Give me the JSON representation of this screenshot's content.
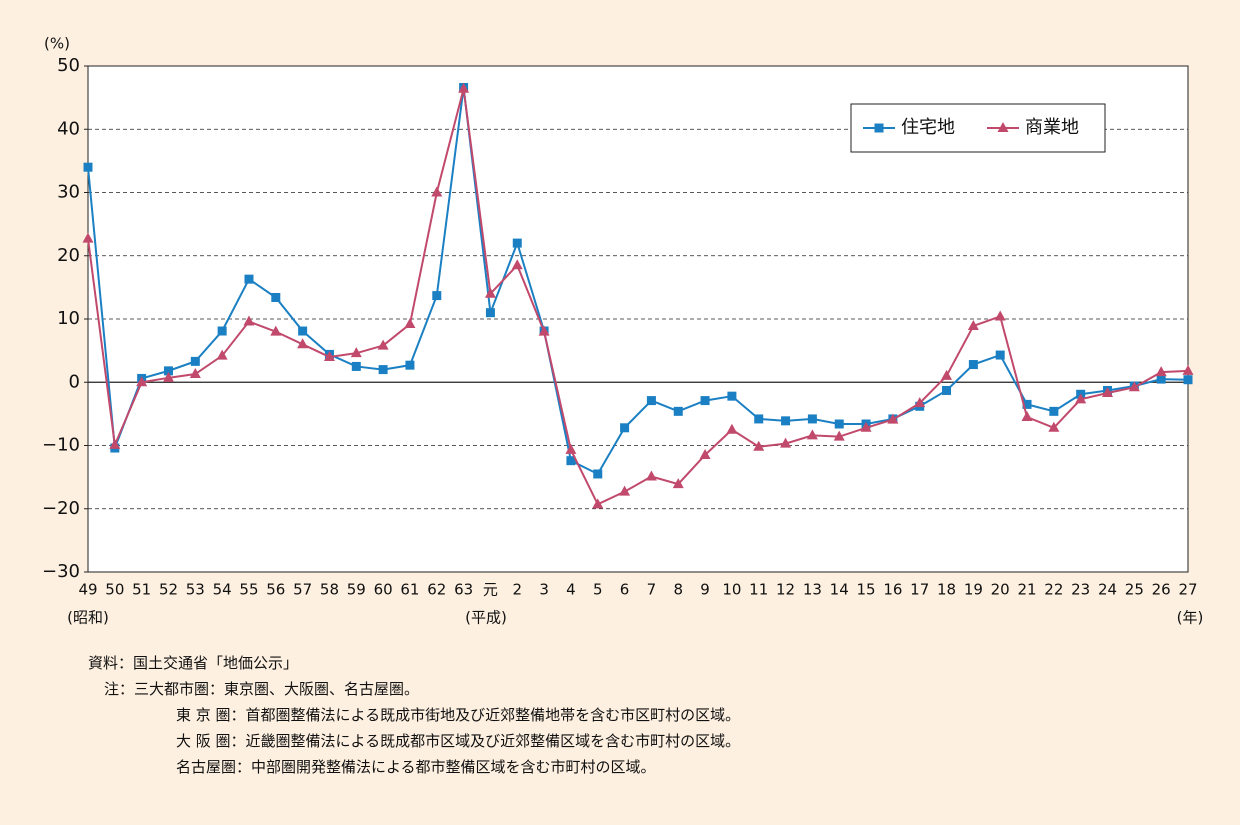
{
  "chart_data": {
    "type": "line",
    "y_unit": "(%)",
    "categories": [
      "49",
      "50",
      "51",
      "52",
      "53",
      "54",
      "55",
      "56",
      "57",
      "58",
      "59",
      "60",
      "61",
      "62",
      "63",
      "元",
      "2",
      "3",
      "4",
      "5",
      "6",
      "7",
      "8",
      "9",
      "10",
      "11",
      "12",
      "13",
      "14",
      "15",
      "16",
      "17",
      "18",
      "19",
      "20",
      "21",
      "22",
      "23",
      "24",
      "25",
      "26",
      "27"
    ],
    "era_labels": [
      "(昭和)",
      "(平成)",
      "(年)"
    ],
    "series": [
      {
        "name": "住宅地",
        "color": "#1b80c3",
        "marker": "square",
        "values": [
          34,
          -10.4,
          0.6,
          1.8,
          3.3,
          8.1,
          16.3,
          13.4,
          8.1,
          4.4,
          2.5,
          2.0,
          2.7,
          13.7,
          46.6,
          11.0,
          22.0,
          8.1,
          -12.4,
          -14.5,
          -7.2,
          -2.9,
          -4.6,
          -2.9,
          -2.2,
          -5.8,
          -6.1,
          -5.8,
          -6.6,
          -6.6,
          -5.8,
          -3.8,
          -1.3,
          2.8,
          4.3,
          -3.5,
          -4.6,
          -1.9,
          -1.3,
          -0.6,
          0.5,
          0.4
        ]
      },
      {
        "name": "商業地",
        "color": "#c1496c",
        "marker": "triangle",
        "values": [
          22.7,
          -9.9,
          0.0,
          0.7,
          1.3,
          4.2,
          9.6,
          8.0,
          6.0,
          4.0,
          4.6,
          5.8,
          9.2,
          30.0,
          46.4,
          14.0,
          18.5,
          8.0,
          -10.7,
          -19.3,
          -17.3,
          -14.9,
          -16.1,
          -11.5,
          -7.5,
          -10.2,
          -9.7,
          -8.4,
          -8.6,
          -7.2,
          -5.9,
          -3.3,
          1.0,
          8.9,
          10.4,
          -5.5,
          -7.2,
          -2.7,
          -1.7,
          -0.8,
          1.6,
          1.8
        ]
      }
    ],
    "ylim": [
      -30,
      50
    ],
    "yticks": [
      50,
      40,
      30,
      20,
      10,
      0,
      {
        "value": -10,
        "label": "−10"
      },
      {
        "value": -20,
        "label": "−20"
      },
      {
        "value": -30,
        "label": "−30"
      }
    ],
    "grid": true,
    "legend": "top-right",
    "notes": [
      "資料：国土交通省「地価公示」",
      "注：三大都市圏：東京圏、大阪圏、名古屋圏。",
      "東 京 圏：首都圏整備法による既成市街地及び近郊整備地帯を含む市区町村の区域。",
      "大 阪 圏：近畿圏整備法による既成都市区域及び近郊整備区域を含む市町村の区域。",
      "名古屋圏：中部圏開発整備法による都市整備区域を含む市町村の区域。"
    ]
  }
}
